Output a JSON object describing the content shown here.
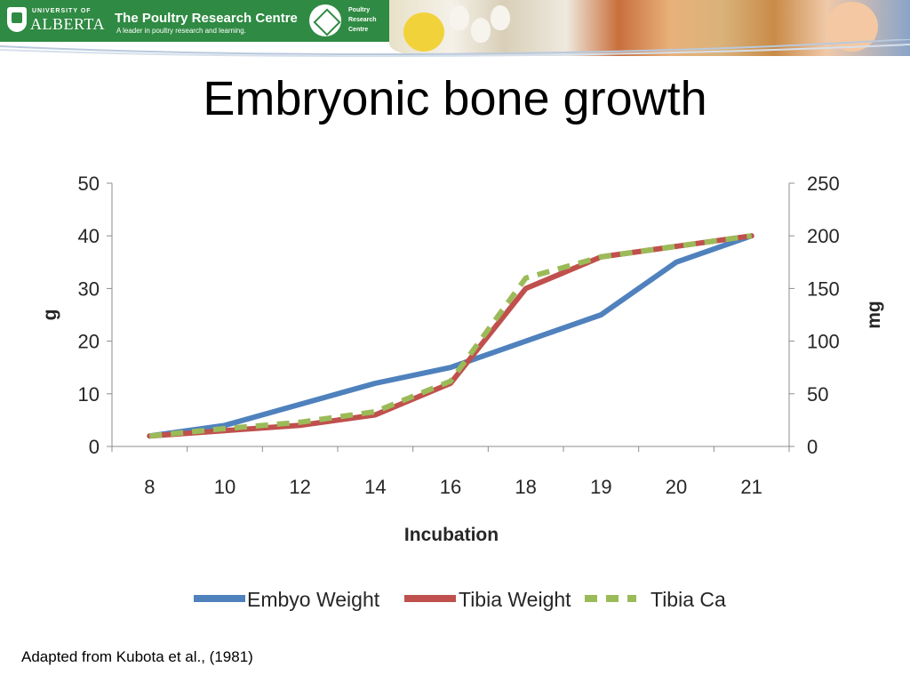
{
  "header": {
    "university_small": "UNIVERSITY OF",
    "university": "ALBERTA",
    "centre_name": "The Poultry Research Centre",
    "tagline": "A leader in poultry research and learning.",
    "centre_small_1": "Poultry",
    "centre_small_2": "Research",
    "centre_small_3": "Centre"
  },
  "slide": {
    "title": "Embryonic bone growth",
    "footnote": "Adapted  from Kubota et al., (1981)"
  },
  "colors": {
    "banner_green": "#2f8a43",
    "embryo": "#4f81bd",
    "tibia_weight": "#c0504d",
    "tibia_ca": "#9bbb59"
  },
  "chart_data": {
    "type": "line",
    "title": "",
    "xlabel": "Incubation",
    "ylabel": "g",
    "y2label": "mg",
    "categories": [
      "8",
      "10",
      "12",
      "14",
      "16",
      "18",
      "19",
      "20",
      "21"
    ],
    "ylim": [
      0,
      50
    ],
    "y2lim": [
      0,
      250
    ],
    "yticks": [
      0,
      10,
      20,
      30,
      40,
      50
    ],
    "y2ticks": [
      0,
      50,
      100,
      150,
      200,
      250
    ],
    "grid": false,
    "legend": "bottom",
    "series": [
      {
        "name": "Embyo Weight",
        "axis": "left",
        "style": "solid",
        "color": "#4f81bd",
        "values": [
          2,
          4,
          8,
          12,
          15,
          20,
          25,
          35,
          40
        ]
      },
      {
        "name": "Tibia Weight",
        "axis": "right",
        "style": "solid",
        "color": "#c0504d",
        "values": [
          10,
          15,
          20,
          30,
          60,
          150,
          180,
          190,
          200
        ]
      },
      {
        "name": "Tibia Ca",
        "axis": "right",
        "style": "dashed",
        "color": "#9bbb59",
        "values": [
          10,
          17,
          23,
          33,
          62,
          160,
          180,
          190,
          200
        ]
      }
    ]
  }
}
